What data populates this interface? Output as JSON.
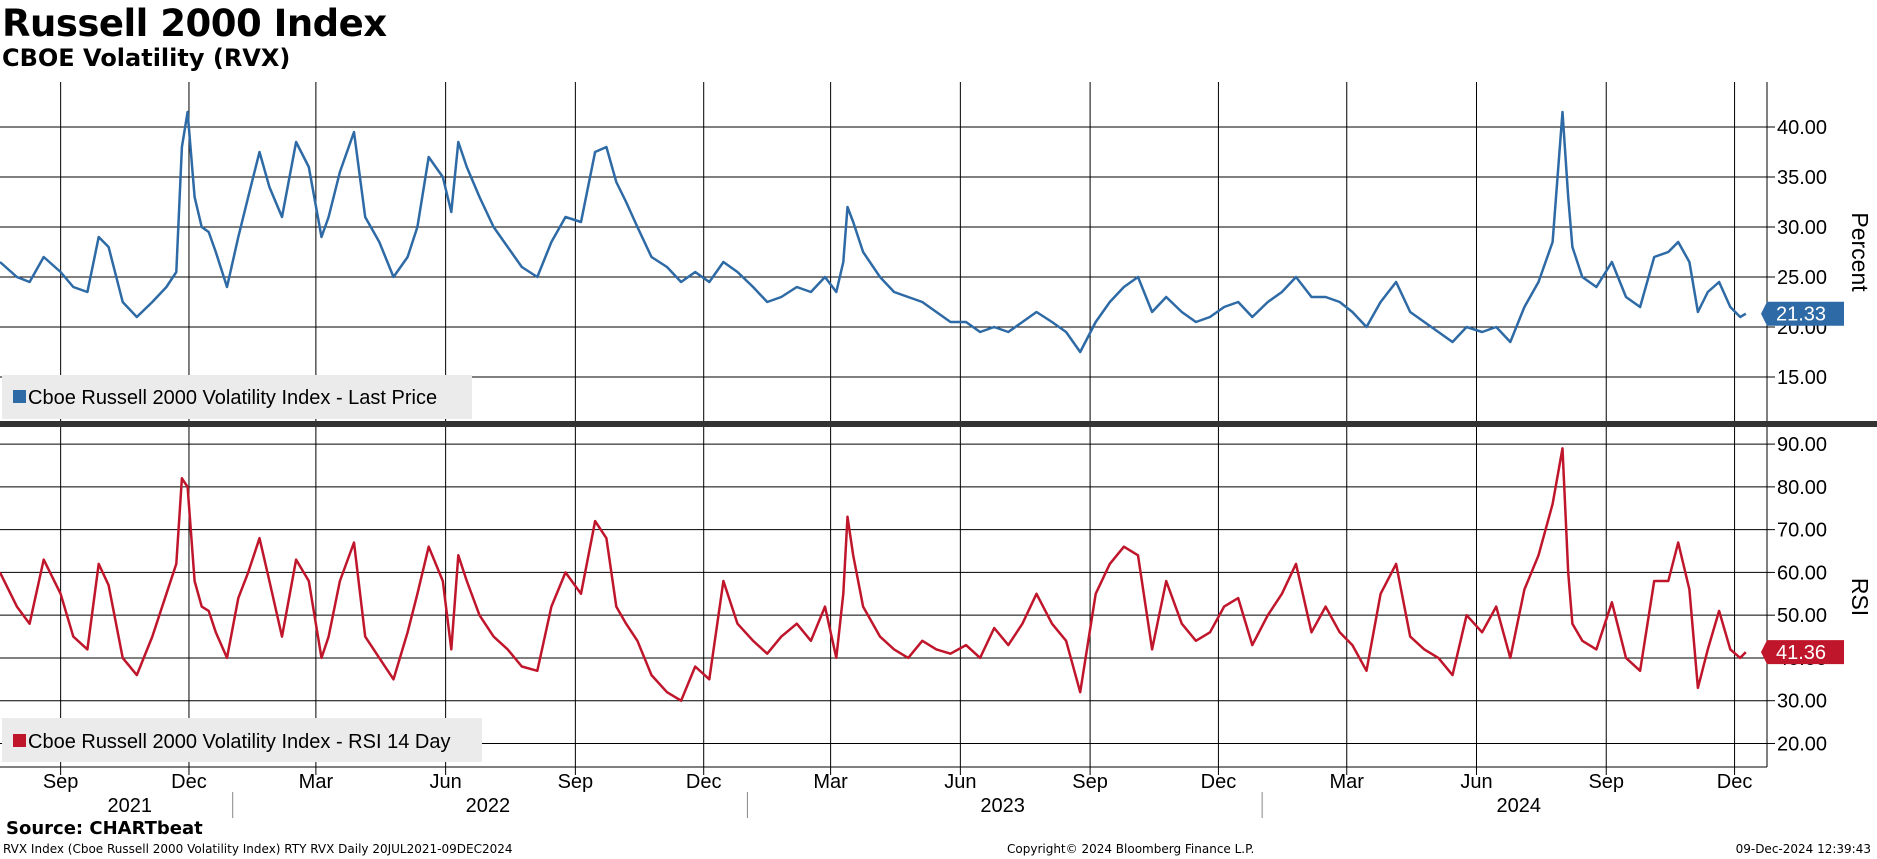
{
  "title": "Russell 2000 Index",
  "subtitle": "CBOE Volatility (RVX)",
  "source": "Source: CHARTbeat",
  "footer": {
    "left": "RVX Index (Cboe Russell 2000 Volatility Index) RTY RVX  Daily 20JUL2021-09DEC2024",
    "center": "Copyright© 2024 Bloomberg Finance L.P.",
    "right": "09-Dec-2024 12:39:43"
  },
  "colors": {
    "price": "#2e6aa5",
    "rsi": "#c0162c",
    "grid": "#000000",
    "legend_bg": "#ebebeb"
  },
  "chart_data": [
    {
      "type": "line",
      "panel": "top",
      "series": [
        {
          "name": "Cboe Russell 2000 Volatility Index - Last Price",
          "x": [
            "2021-07-20",
            "2021-08-01",
            "2021-08-10",
            "2021-08-20",
            "2021-09-01",
            "2021-09-10",
            "2021-09-20",
            "2021-09-28",
            "2021-10-05",
            "2021-10-15",
            "2021-10-25",
            "2021-11-05",
            "2021-11-15",
            "2021-11-22",
            "2021-11-26",
            "2021-11-30",
            "2021-12-05",
            "2021-12-10",
            "2021-12-15",
            "2021-12-20",
            "2021-12-28",
            "2022-01-05",
            "2022-01-12",
            "2022-01-20",
            "2022-01-27",
            "2022-02-05",
            "2022-02-15",
            "2022-02-24",
            "2022-03-05",
            "2022-03-10",
            "2022-03-18",
            "2022-03-28",
            "2022-04-05",
            "2022-04-15",
            "2022-04-25",
            "2022-05-05",
            "2022-05-12",
            "2022-05-20",
            "2022-05-30",
            "2022-06-05",
            "2022-06-10",
            "2022-06-16",
            "2022-06-25",
            "2022-07-05",
            "2022-07-15",
            "2022-07-25",
            "2022-08-05",
            "2022-08-15",
            "2022-08-25",
            "2022-09-05",
            "2022-09-15",
            "2022-09-23",
            "2022-09-30",
            "2022-10-07",
            "2022-10-15",
            "2022-10-25",
            "2022-11-05",
            "2022-11-15",
            "2022-11-25",
            "2022-12-05",
            "2022-12-15",
            "2022-12-25",
            "2023-01-05",
            "2023-01-15",
            "2023-01-25",
            "2023-02-05",
            "2023-02-15",
            "2023-02-25",
            "2023-03-05",
            "2023-03-10",
            "2023-03-13",
            "2023-03-17",
            "2023-03-24",
            "2023-04-05",
            "2023-04-15",
            "2023-04-25",
            "2023-05-05",
            "2023-05-15",
            "2023-05-25",
            "2023-06-05",
            "2023-06-15",
            "2023-06-25",
            "2023-07-05",
            "2023-07-15",
            "2023-07-25",
            "2023-08-05",
            "2023-08-15",
            "2023-08-25",
            "2023-09-05",
            "2023-09-15",
            "2023-09-25",
            "2023-10-05",
            "2023-10-15",
            "2023-10-25",
            "2023-11-05",
            "2023-11-15",
            "2023-11-25",
            "2023-12-05",
            "2023-12-15",
            "2023-12-25",
            "2024-01-05",
            "2024-01-15",
            "2024-01-25",
            "2024-02-05",
            "2024-02-15",
            "2024-02-25",
            "2024-03-05",
            "2024-03-15",
            "2024-03-25",
            "2024-04-05",
            "2024-04-15",
            "2024-04-25",
            "2024-05-05",
            "2024-05-15",
            "2024-05-25",
            "2024-06-05",
            "2024-06-15",
            "2024-06-25",
            "2024-07-05",
            "2024-07-15",
            "2024-07-25",
            "2024-08-01",
            "2024-08-05",
            "2024-08-08",
            "2024-08-15",
            "2024-08-25",
            "2024-09-05",
            "2024-09-15",
            "2024-09-25",
            "2024-10-05",
            "2024-10-15",
            "2024-10-22",
            "2024-10-30",
            "2024-11-05",
            "2024-11-12",
            "2024-11-20",
            "2024-11-28",
            "2024-12-05",
            "2024-12-09"
          ],
          "y": [
            26.5,
            25.0,
            24.5,
            27.0,
            25.5,
            24.0,
            23.5,
            29.0,
            28.0,
            22.5,
            21.0,
            22.5,
            24.0,
            25.5,
            38.0,
            41.5,
            33.0,
            30.0,
            29.5,
            27.5,
            24.0,
            29.0,
            33.0,
            37.5,
            34.0,
            31.0,
            38.5,
            36.0,
            29.0,
            31.0,
            35.5,
            39.5,
            31.0,
            28.5,
            25.0,
            27.0,
            30.0,
            37.0,
            35.0,
            31.5,
            38.5,
            36.0,
            33.0,
            30.0,
            28.0,
            26.0,
            25.0,
            28.5,
            31.0,
            30.5,
            37.5,
            38.0,
            34.5,
            32.5,
            30.0,
            27.0,
            26.0,
            24.5,
            25.5,
            24.5,
            26.5,
            25.5,
            24.0,
            22.5,
            23.0,
            24.0,
            23.5,
            25.0,
            23.5,
            26.5,
            32.0,
            30.5,
            27.5,
            25.0,
            23.5,
            23.0,
            22.5,
            21.5,
            20.5,
            20.5,
            19.5,
            20.0,
            19.5,
            20.5,
            21.5,
            20.5,
            19.5,
            17.5,
            20.5,
            22.5,
            24.0,
            25.0,
            21.5,
            23.0,
            21.5,
            20.5,
            21.0,
            22.0,
            22.5,
            21.0,
            22.5,
            23.5,
            25.0,
            23.0,
            23.0,
            22.5,
            21.5,
            20.0,
            22.5,
            24.5,
            21.5,
            20.5,
            19.5,
            18.5,
            20.0,
            19.5,
            20.0,
            18.5,
            22.0,
            24.5,
            28.5,
            41.5,
            33.0,
            28.0,
            25.0,
            24.0,
            26.5,
            23.0,
            22.0,
            27.0,
            27.5,
            28.5,
            26.5,
            21.5,
            23.5,
            24.5,
            22.0,
            21.0,
            21.33
          ]
        }
      ],
      "ylabel": "Percent",
      "yticks": [
        15,
        20,
        25,
        30,
        35,
        40
      ],
      "ytick_labels": [
        "15.00",
        "20.00",
        "25.00",
        "30.00",
        "35.00",
        "40.00"
      ],
      "ylim": [
        10.5,
        44.5
      ],
      "last_value": "21.33",
      "grid": true,
      "legend": "bottom-left"
    },
    {
      "type": "line",
      "panel": "bottom",
      "series": [
        {
          "name": "Cboe Russell 2000 Volatility Index - RSI 14 Day",
          "x": [
            "2021-07-20",
            "2021-08-01",
            "2021-08-10",
            "2021-08-20",
            "2021-09-01",
            "2021-09-10",
            "2021-09-20",
            "2021-09-28",
            "2021-10-05",
            "2021-10-15",
            "2021-10-25",
            "2021-11-05",
            "2021-11-15",
            "2021-11-22",
            "2021-11-26",
            "2021-11-30",
            "2021-12-05",
            "2021-12-10",
            "2021-12-15",
            "2021-12-20",
            "2021-12-28",
            "2022-01-05",
            "2022-01-12",
            "2022-01-20",
            "2022-01-27",
            "2022-02-05",
            "2022-02-15",
            "2022-02-24",
            "2022-03-05",
            "2022-03-10",
            "2022-03-18",
            "2022-03-28",
            "2022-04-05",
            "2022-04-15",
            "2022-04-25",
            "2022-05-05",
            "2022-05-12",
            "2022-05-20",
            "2022-05-30",
            "2022-06-05",
            "2022-06-10",
            "2022-06-16",
            "2022-06-25",
            "2022-07-05",
            "2022-07-15",
            "2022-07-25",
            "2022-08-05",
            "2022-08-15",
            "2022-08-25",
            "2022-09-05",
            "2022-09-15",
            "2022-09-23",
            "2022-09-30",
            "2022-10-07",
            "2022-10-15",
            "2022-10-25",
            "2022-11-05",
            "2022-11-15",
            "2022-11-25",
            "2022-12-05",
            "2022-12-15",
            "2022-12-25",
            "2023-01-05",
            "2023-01-15",
            "2023-01-25",
            "2023-02-05",
            "2023-02-15",
            "2023-02-25",
            "2023-03-05",
            "2023-03-10",
            "2023-03-13",
            "2023-03-17",
            "2023-03-24",
            "2023-04-05",
            "2023-04-15",
            "2023-04-25",
            "2023-05-05",
            "2023-05-15",
            "2023-05-25",
            "2023-06-05",
            "2023-06-15",
            "2023-06-25",
            "2023-07-05",
            "2023-07-15",
            "2023-07-25",
            "2023-08-05",
            "2023-08-15",
            "2023-08-25",
            "2023-09-05",
            "2023-09-15",
            "2023-09-25",
            "2023-10-05",
            "2023-10-15",
            "2023-10-25",
            "2023-11-05",
            "2023-11-15",
            "2023-11-25",
            "2023-12-05",
            "2023-12-15",
            "2023-12-25",
            "2024-01-05",
            "2024-01-15",
            "2024-01-25",
            "2024-02-05",
            "2024-02-15",
            "2024-02-25",
            "2024-03-05",
            "2024-03-15",
            "2024-03-25",
            "2024-04-05",
            "2024-04-15",
            "2024-04-25",
            "2024-05-05",
            "2024-05-15",
            "2024-05-25",
            "2024-06-05",
            "2024-06-15",
            "2024-06-25",
            "2024-07-05",
            "2024-07-15",
            "2024-07-25",
            "2024-08-01",
            "2024-08-05",
            "2024-08-08",
            "2024-08-15",
            "2024-08-25",
            "2024-09-05",
            "2024-09-15",
            "2024-09-25",
            "2024-10-05",
            "2024-10-15",
            "2024-10-22",
            "2024-10-30",
            "2024-11-05",
            "2024-11-12",
            "2024-11-20",
            "2024-11-28",
            "2024-12-05",
            "2024-12-09"
          ],
          "y": [
            60.0,
            52.0,
            48.0,
            63.0,
            55.0,
            45.0,
            42.0,
            62.0,
            57.0,
            40.0,
            36.0,
            45.0,
            55.0,
            62.0,
            82.0,
            80.0,
            58.0,
            52.0,
            51.0,
            46.0,
            40.0,
            54.0,
            60.0,
            68.0,
            58.0,
            45.0,
            63.0,
            58.0,
            40.0,
            45.0,
            58.0,
            67.0,
            45.0,
            40.0,
            35.0,
            46.0,
            55.0,
            66.0,
            58.0,
            42.0,
            64.0,
            58.0,
            50.0,
            45.0,
            42.0,
            38.0,
            37.0,
            52.0,
            60.0,
            55.0,
            72.0,
            68.0,
            52.0,
            48.0,
            44.0,
            36.0,
            32.0,
            30.0,
            38.0,
            35.0,
            58.0,
            48.0,
            44.0,
            41.0,
            45.0,
            48.0,
            44.0,
            52.0,
            40.0,
            55.0,
            73.0,
            64.0,
            52.0,
            45.0,
            42.0,
            40.0,
            44.0,
            42.0,
            41.0,
            43.0,
            40.0,
            47.0,
            43.0,
            48.0,
            55.0,
            48.0,
            44.0,
            32.0,
            55.0,
            62.0,
            66.0,
            64.0,
            42.0,
            58.0,
            48.0,
            44.0,
            46.0,
            52.0,
            54.0,
            43.0,
            50.0,
            55.0,
            62.0,
            46.0,
            52.0,
            46.0,
            43.0,
            37.0,
            55.0,
            62.0,
            45.0,
            42.0,
            40.0,
            36.0,
            50.0,
            46.0,
            52.0,
            40.0,
            56.0,
            64.0,
            76.0,
            89.0,
            60.0,
            48.0,
            44.0,
            42.0,
            53.0,
            40.0,
            37.0,
            58.0,
            58.0,
            67.0,
            56.0,
            33.0,
            42.0,
            51.0,
            42.0,
            40.0,
            41.36
          ]
        }
      ],
      "ylabel": "RSI",
      "yticks": [
        20,
        30,
        40,
        50,
        60,
        70,
        80,
        90
      ],
      "ytick_labels": [
        "20.00",
        "30.00",
        "40.00",
        "50.00",
        "60.00",
        "70.00",
        "80.00",
        "90.00"
      ],
      "ylim": [
        14.5,
        94
      ],
      "last_value": "41.36",
      "grid": true,
      "legend": "bottom-left"
    }
  ],
  "x_axis": {
    "month_ticks": [
      {
        "label": "Sep",
        "date": "2021-09-01"
      },
      {
        "label": "Dec",
        "date": "2021-12-01"
      },
      {
        "label": "Mar",
        "date": "2022-03-01"
      },
      {
        "label": "Jun",
        "date": "2022-06-01"
      },
      {
        "label": "Sep",
        "date": "2022-09-01"
      },
      {
        "label": "Dec",
        "date": "2022-12-01"
      },
      {
        "label": "Mar",
        "date": "2023-03-01"
      },
      {
        "label": "Jun",
        "date": "2023-06-01"
      },
      {
        "label": "Sep",
        "date": "2023-09-01"
      },
      {
        "label": "Dec",
        "date": "2023-12-01"
      },
      {
        "label": "Mar",
        "date": "2024-03-01"
      },
      {
        "label": "Jun",
        "date": "2024-06-01"
      },
      {
        "label": "Sep",
        "date": "2024-09-01"
      },
      {
        "label": "Dec",
        "date": "2024-12-01"
      }
    ],
    "year_labels": [
      {
        "label": "2021",
        "date": "2021-10-20"
      },
      {
        "label": "2022",
        "date": "2022-07-01"
      },
      {
        "label": "2023",
        "date": "2023-07-01"
      },
      {
        "label": "2024",
        "date": "2024-07-01"
      }
    ],
    "year_separators": [
      "2022-01-01",
      "2023-01-01",
      "2024-01-01"
    ]
  }
}
